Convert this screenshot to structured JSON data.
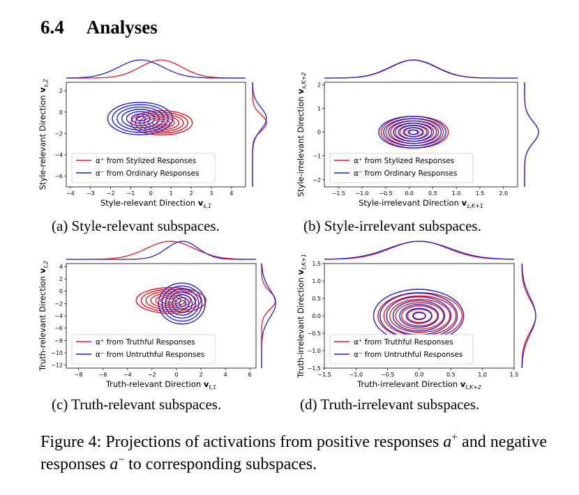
{
  "section": {
    "number": "6.4",
    "title": "Analyses"
  },
  "figure": {
    "label": "Figure 4:",
    "text_part1": "Projections of activations from positive responses",
    "a_plus": "a",
    "a_plus_sup": "+",
    "text_part2": "and negative responses",
    "a_minus": "a",
    "a_minus_sup": "−",
    "text_part3": "to corresponding subspaces."
  },
  "colors": {
    "positive": "#e8141e",
    "negative": "#1f1fd6"
  },
  "chart_data": [
    {
      "type": "contour",
      "caption": "(a) Style-relevant subspaces.",
      "xlabel": "Style-relevant Direction v_{s,1}",
      "ylabel": "Style-relevant Direction v_{s,2}",
      "xticks": [
        "−4",
        "−3",
        "−2",
        "−1",
        "0",
        "1",
        "2",
        "3",
        "4"
      ],
      "yticks": [
        "2",
        "0",
        "−2",
        "−4",
        "−6"
      ],
      "xlim": [
        -4.2,
        4.7
      ],
      "ylim": [
        -7.0,
        2.8
      ],
      "legend": [
        "α⁺  from Stylized Responses",
        "α⁻  from Ordinary Responses"
      ],
      "legend_loc": "lower left",
      "series": [
        {
          "name": "α⁺ from Stylized Responses",
          "color": "positive",
          "center": [
            0.5,
            -1.0
          ],
          "spread": [
            1.6,
            1.2
          ]
        },
        {
          "name": "α⁻ from Ordinary Responses",
          "color": "negative",
          "center": [
            -0.5,
            -0.6
          ],
          "spread": [
            1.7,
            1.6
          ]
        }
      ]
    },
    {
      "type": "contour",
      "caption": "(b) Style-irrelevant subspaces.",
      "xlabel": "Style-irrelevant Direction v_{s,K+1}",
      "ylabel": "Style-irrelevant Direction v_{s,K+2}",
      "xticks": [
        "−1.5",
        "−1.0",
        "−0.5",
        "0.0",
        "0.5",
        "1.0",
        "1.5",
        "2.0"
      ],
      "yticks": [
        "2",
        "1",
        "0",
        "−1",
        "−2"
      ],
      "xlim": [
        -1.8,
        2.3
      ],
      "ylim": [
        -2.3,
        2.1
      ],
      "legend": [
        "α⁺  from Stylized Responses",
        "α⁻  from Ordinary Responses"
      ],
      "legend_loc": "lower left",
      "series": [
        {
          "name": "α⁺ from Stylized Responses",
          "color": "positive",
          "center": [
            0.1,
            0.0
          ],
          "spread": [
            0.75,
            0.7
          ]
        },
        {
          "name": "α⁻ from Ordinary Responses",
          "color": "negative",
          "center": [
            0.08,
            0.0
          ],
          "spread": [
            0.75,
            0.7
          ]
        }
      ]
    },
    {
      "type": "contour",
      "caption": "(c) Truth-relevant subspaces.",
      "xlabel": "Truth-relevant Direction v_{t,1}",
      "ylabel": "Truth-relevant Direction v_{t,2}",
      "xticks": [
        "−8",
        "−6",
        "−4",
        "−2",
        "0",
        "2",
        "4",
        "6"
      ],
      "yticks": [
        "4",
        "2",
        "0",
        "−2",
        "−4",
        "−6",
        "−8",
        "−10",
        "−12"
      ],
      "xlim": [
        -9.0,
        6.5
      ],
      "ylim": [
        -12.5,
        4.5
      ],
      "legend": [
        "α⁺  from Truthful Responses",
        "α⁻  from Untruthful Responses"
      ],
      "legend_loc": "lower left",
      "series": [
        {
          "name": "α⁺ from Truthful Responses",
          "color": "positive",
          "center": [
            -0.5,
            -1.5
          ],
          "spread": [
            3.0,
            2.2
          ]
        },
        {
          "name": "α⁻ from Untruthful Responses",
          "color": "negative",
          "center": [
            0.5,
            -2.0
          ],
          "spread": [
            2.0,
            3.5
          ]
        }
      ]
    },
    {
      "type": "contour",
      "caption": "(d) Truth-irrelevant subspaces.",
      "xlabel": "Truth-irrelevant Direction v_{t,K+2}",
      "ylabel": "Truth-irrelevant Direction v_{t,K+1}",
      "xticks": [
        "−1.5",
        "−1.0",
        "−0.5",
        "0.0",
        "0.5",
        "1.0",
        "1.5"
      ],
      "yticks": [
        "1.5",
        "1.0",
        "0.5",
        "0.0",
        "−0.5",
        "−1.0",
        "−1.5"
      ],
      "xlim": [
        -1.5,
        1.5
      ],
      "ylim": [
        -1.5,
        1.5
      ],
      "legend": [
        "α⁺  from Truthful Responses",
        "α⁻  from Untruthful Responses"
      ],
      "legend_loc": "lower left",
      "series": [
        {
          "name": "α⁺ from Truthful Responses",
          "color": "positive",
          "center": [
            0.0,
            0.0
          ],
          "spread": [
            0.7,
            0.7
          ]
        },
        {
          "name": "α⁻ from Untruthful Responses",
          "color": "negative",
          "center": [
            0.0,
            0.0
          ],
          "spread": [
            0.75,
            0.8
          ]
        }
      ]
    }
  ]
}
